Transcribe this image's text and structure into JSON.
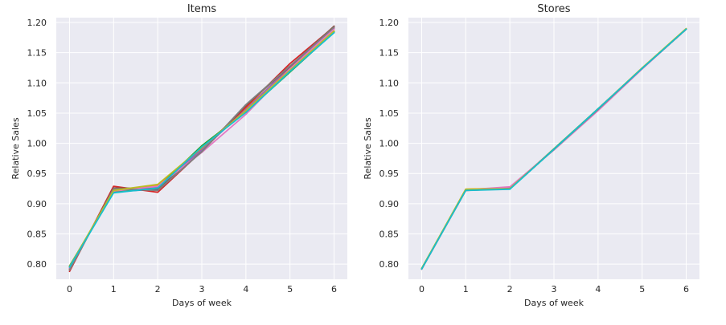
{
  "chart_data": [
    {
      "type": "line",
      "title": "Items",
      "xlabel": "Days of week",
      "ylabel": "Relative Sales",
      "x": [
        0,
        1,
        2,
        3,
        4,
        5,
        6
      ],
      "xticks": [
        "0",
        "1",
        "2",
        "3",
        "4",
        "5",
        "6"
      ],
      "yticks": [
        "0.80",
        "0.85",
        "0.90",
        "0.95",
        "1.00",
        "1.05",
        "1.10",
        "1.15",
        "1.20"
      ],
      "ylim": [
        0.775,
        1.208
      ],
      "grid": true,
      "background": "#eaeaf2",
      "series": [
        {
          "color": "#1f77b4",
          "values": [
            0.795,
            0.92,
            0.924,
            0.99,
            1.055,
            1.12,
            1.185
          ]
        },
        {
          "color": "#ff7f0e",
          "values": [
            0.792,
            0.923,
            0.93,
            0.992,
            1.058,
            1.124,
            1.19
          ]
        },
        {
          "color": "#2ca02c",
          "values": [
            0.797,
            0.919,
            0.927,
            0.996,
            1.052,
            1.118,
            1.184
          ]
        },
        {
          "color": "#d62728",
          "values": [
            0.788,
            0.929,
            0.919,
            0.987,
            1.06,
            1.132,
            1.193
          ]
        },
        {
          "color": "#9467bd",
          "values": [
            0.793,
            0.924,
            0.928,
            0.989,
            1.056,
            1.126,
            1.191
          ]
        },
        {
          "color": "#8c564b",
          "values": [
            0.791,
            0.926,
            0.925,
            0.986,
            1.063,
            1.127,
            1.194
          ]
        },
        {
          "color": "#e377c2",
          "values": [
            0.794,
            0.921,
            0.929,
            0.985,
            1.048,
            1.123,
            1.189
          ]
        },
        {
          "color": "#7f7f7f",
          "values": [
            0.79,
            0.925,
            0.922,
            0.986,
            1.064,
            1.128,
            1.192
          ]
        },
        {
          "color": "#bcbd22",
          "values": [
            0.796,
            0.922,
            0.932,
            0.993,
            1.054,
            1.121,
            1.186
          ]
        },
        {
          "color": "#17becf",
          "values": [
            0.795,
            0.918,
            0.926,
            0.994,
            1.051,
            1.119,
            1.183
          ]
        }
      ]
    },
    {
      "type": "line",
      "title": "Stores",
      "xlabel": "Days of week",
      "ylabel": "Relative Sales",
      "x": [
        0,
        1,
        2,
        3,
        4,
        5,
        6
      ],
      "xticks": [
        "0",
        "1",
        "2",
        "3",
        "4",
        "5",
        "6"
      ],
      "yticks": [
        "0.80",
        "0.85",
        "0.90",
        "0.95",
        "1.00",
        "1.05",
        "1.10",
        "1.15",
        "1.20"
      ],
      "ylim": [
        0.775,
        1.208
      ],
      "grid": true,
      "background": "#eaeaf2",
      "series": [
        {
          "color": "#1f77b4",
          "values": [
            0.792,
            0.923,
            0.925,
            0.99,
            1.057,
            1.124,
            1.189
          ]
        },
        {
          "color": "#ff7f0e",
          "values": [
            0.792,
            0.924,
            0.926,
            0.99,
            1.057,
            1.124,
            1.189
          ]
        },
        {
          "color": "#2ca02c",
          "values": [
            0.793,
            0.923,
            0.925,
            0.991,
            1.057,
            1.124,
            1.189
          ]
        },
        {
          "color": "#d62728",
          "values": [
            0.792,
            0.922,
            0.925,
            0.99,
            1.056,
            1.124,
            1.189
          ]
        },
        {
          "color": "#9467bd",
          "values": [
            0.792,
            0.923,
            0.927,
            0.99,
            1.056,
            1.124,
            1.189
          ]
        },
        {
          "color": "#8c564b",
          "values": [
            0.792,
            0.923,
            0.925,
            0.99,
            1.056,
            1.124,
            1.189
          ]
        },
        {
          "color": "#e377c2",
          "values": [
            0.792,
            0.923,
            0.928,
            0.989,
            1.054,
            1.123,
            1.189
          ]
        },
        {
          "color": "#7f7f7f",
          "values": [
            0.792,
            0.923,
            0.925,
            0.99,
            1.056,
            1.124,
            1.189
          ]
        },
        {
          "color": "#bcbd22",
          "values": [
            0.793,
            0.924,
            0.925,
            0.99,
            1.057,
            1.125,
            1.19
          ]
        },
        {
          "color": "#17becf",
          "values": [
            0.792,
            0.922,
            0.924,
            0.99,
            1.057,
            1.124,
            1.189
          ]
        }
      ]
    }
  ]
}
